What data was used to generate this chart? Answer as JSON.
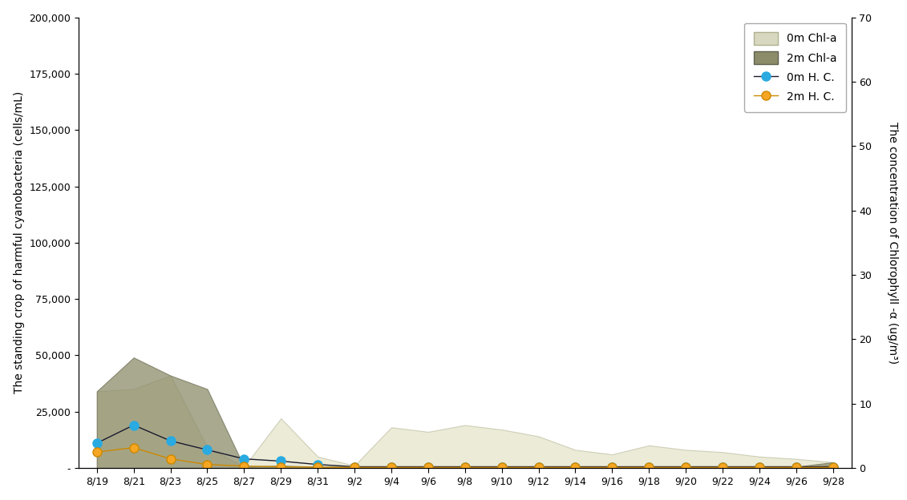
{
  "x_labels": [
    "8/19",
    "8/21",
    "8/23",
    "8/25",
    "8/27",
    "8/29",
    "8/31",
    "9/2",
    "9/4",
    "9/6",
    "9/8",
    "9/10",
    "9/12",
    "9/14",
    "9/16",
    "9/18",
    "9/20",
    "9/22",
    "9/24",
    "9/26",
    "9/28"
  ],
  "chl0m": [
    34000,
    35000,
    41000,
    9000,
    500,
    22000,
    5000,
    1000,
    18000,
    16000,
    19000,
    17000,
    14000,
    8000,
    6000,
    10000,
    8000,
    7000,
    5000,
    4000,
    2500
  ],
  "chl2m": [
    34000,
    49000,
    41000,
    35000,
    500,
    1000,
    500,
    500,
    500,
    500,
    500,
    500,
    500,
    500,
    500,
    500,
    500,
    500,
    500,
    500,
    2500
  ],
  "hc0m": [
    11000,
    19000,
    12000,
    8000,
    4000,
    3000,
    1500,
    500,
    500,
    500,
    500,
    500,
    500,
    500,
    500,
    500,
    500,
    500,
    500,
    500,
    500
  ],
  "hc2m": [
    7000,
    9000,
    4000,
    1500,
    800,
    500,
    300,
    200,
    200,
    200,
    200,
    200,
    200,
    200,
    200,
    200,
    200,
    200,
    200,
    200,
    200
  ],
  "ylim_left": [
    0,
    200000
  ],
  "ylim_right": [
    0,
    70
  ],
  "ylabel_left": "The standing crop of harmful cyanobacteria (cells/mL)",
  "ylabel_right": "The concentration of Chlorophyll -α (ug/m³)",
  "chl0m_color": "#d8d8c0",
  "chl2m_color": "#a0a078",
  "hc0m_color": "#29aae1",
  "hc2m_color": "#f5a623",
  "bg_color": "#ffffff",
  "legend_labels": [
    "0m Chl-a",
    "2m Chl-a",
    "0m H. C.",
    "2m H. C."
  ]
}
